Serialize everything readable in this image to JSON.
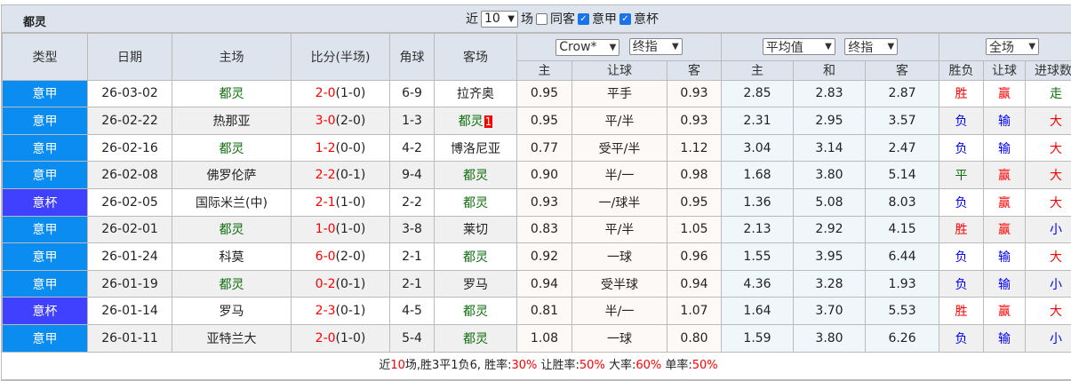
{
  "title": {
    "team": "都灵",
    "recent_prefix": "近",
    "recent_count": "10",
    "recent_suffix": "场",
    "same_away": "同客",
    "league1": "意甲",
    "league2": "意杯",
    "same_away_checked": false,
    "league1_checked": true,
    "league2_checked": true
  },
  "headers": {
    "type": "类型",
    "date": "日期",
    "home": "主场",
    "score": "比分(半场)",
    "corner": "角球",
    "away": "客场",
    "company": "Crow*",
    "odds_type1": "终指",
    "avg": "平均值",
    "odds_type2": "终指",
    "scope": "全场",
    "ah_home": "主",
    "ah_line": "让球",
    "ah_away": "客",
    "eu_home": "主",
    "eu_draw": "和",
    "eu_away": "客",
    "res_wl": "胜负",
    "res_ah": "让球",
    "res_goals": "进球数"
  },
  "colors": {
    "league_serie_a": "#0a8cf0",
    "league_cup": "#4040ff",
    "win": "#ff0000",
    "lose": "#0000ff",
    "draw": "#107010",
    "team": "#107010"
  },
  "rows": [
    {
      "type": "意甲",
      "cup": false,
      "date": "26-03-02",
      "home": "都灵",
      "score": "2-0",
      "half": "(1-0)",
      "corner": "6-9",
      "away": "拉齐奥",
      "ah_h": "0.95",
      "ah": "平手",
      "ah_a": "0.93",
      "eu_h": "2.85",
      "eu_d": "2.83",
      "eu_a": "2.87",
      "wl": "胜",
      "ahr": "赢",
      "goals": "走"
    },
    {
      "type": "意甲",
      "cup": false,
      "date": "26-02-22",
      "home": "热那亚",
      "score": "3-0",
      "half": "(2-0)",
      "corner": "1-3",
      "away": "都灵",
      "red": "1",
      "ah_h": "0.95",
      "ah": "平/半",
      "ah_a": "0.93",
      "eu_h": "2.31",
      "eu_d": "2.95",
      "eu_a": "3.57",
      "wl": "负",
      "ahr": "输",
      "goals": "大"
    },
    {
      "type": "意甲",
      "cup": false,
      "date": "26-02-16",
      "home": "都灵",
      "score": "1-2",
      "half": "(0-0)",
      "corner": "4-2",
      "away": "博洛尼亚",
      "ah_h": "0.77",
      "ah": "受平/半",
      "ah_a": "1.12",
      "eu_h": "3.04",
      "eu_d": "3.14",
      "eu_a": "2.47",
      "wl": "负",
      "ahr": "输",
      "goals": "大"
    },
    {
      "type": "意甲",
      "cup": false,
      "date": "26-02-08",
      "home": "佛罗伦萨",
      "score": "2-2",
      "half": "(0-1)",
      "corner": "9-4",
      "away": "都灵",
      "ah_h": "0.90",
      "ah": "半/一",
      "ah_a": "0.98",
      "eu_h": "1.68",
      "eu_d": "3.80",
      "eu_a": "5.14",
      "wl": "平",
      "ahr": "赢",
      "goals": "大"
    },
    {
      "type": "意杯",
      "cup": true,
      "date": "26-02-05",
      "home": "国际米兰(中)",
      "score": "2-1",
      "half": "(1-0)",
      "corner": "2-2",
      "away": "都灵",
      "ah_h": "0.93",
      "ah": "一/球半",
      "ah_a": "0.95",
      "eu_h": "1.36",
      "eu_d": "5.08",
      "eu_a": "8.03",
      "wl": "负",
      "ahr": "赢",
      "goals": "大"
    },
    {
      "type": "意甲",
      "cup": false,
      "date": "26-02-01",
      "home": "都灵",
      "score": "1-0",
      "half": "(1-0)",
      "corner": "3-8",
      "away": "莱切",
      "ah_h": "0.83",
      "ah": "平/半",
      "ah_a": "1.05",
      "eu_h": "2.13",
      "eu_d": "2.92",
      "eu_a": "4.15",
      "wl": "胜",
      "ahr": "赢",
      "goals": "小"
    },
    {
      "type": "意甲",
      "cup": false,
      "date": "26-01-24",
      "home": "科莫",
      "score": "6-0",
      "half": "(2-0)",
      "corner": "2-1",
      "away": "都灵",
      "ah_h": "0.92",
      "ah": "一球",
      "ah_a": "0.96",
      "eu_h": "1.55",
      "eu_d": "3.95",
      "eu_a": "6.44",
      "wl": "负",
      "ahr": "输",
      "goals": "大"
    },
    {
      "type": "意甲",
      "cup": false,
      "date": "26-01-19",
      "home": "都灵",
      "score": "0-2",
      "half": "(0-1)",
      "corner": "2-1",
      "away": "罗马",
      "ah_h": "0.94",
      "ah": "受半球",
      "ah_a": "0.94",
      "eu_h": "4.36",
      "eu_d": "3.28",
      "eu_a": "1.93",
      "wl": "负",
      "ahr": "输",
      "goals": "小"
    },
    {
      "type": "意杯",
      "cup": true,
      "date": "26-01-14",
      "home": "罗马",
      "score": "2-3",
      "half": "(0-1)",
      "corner": "4-5",
      "away": "都灵",
      "ah_h": "0.81",
      "ah": "半/一",
      "ah_a": "1.07",
      "eu_h": "1.64",
      "eu_d": "3.70",
      "eu_a": "5.53",
      "wl": "胜",
      "ahr": "赢",
      "goals": "大"
    },
    {
      "type": "意甲",
      "cup": false,
      "date": "26-01-11",
      "home": "亚特兰大",
      "score": "2-0",
      "half": "(1-0)",
      "corner": "5-4",
      "away": "都灵",
      "ah_h": "1.08",
      "ah": "一球",
      "ah_a": "0.80",
      "eu_h": "1.59",
      "eu_d": "3.80",
      "eu_a": "6.26",
      "wl": "负",
      "ahr": "输",
      "goals": "小"
    }
  ],
  "footer": {
    "p1": "近",
    "n": "10",
    "p2": "场,胜3平1负6, 胜率:",
    "win_rate": "30%",
    "p3": " 让胜率:",
    "ah_rate": "50%",
    "p4": " 大率:",
    "big_rate": "60%",
    "p5": " 单率:",
    "odd_rate": "50%"
  }
}
